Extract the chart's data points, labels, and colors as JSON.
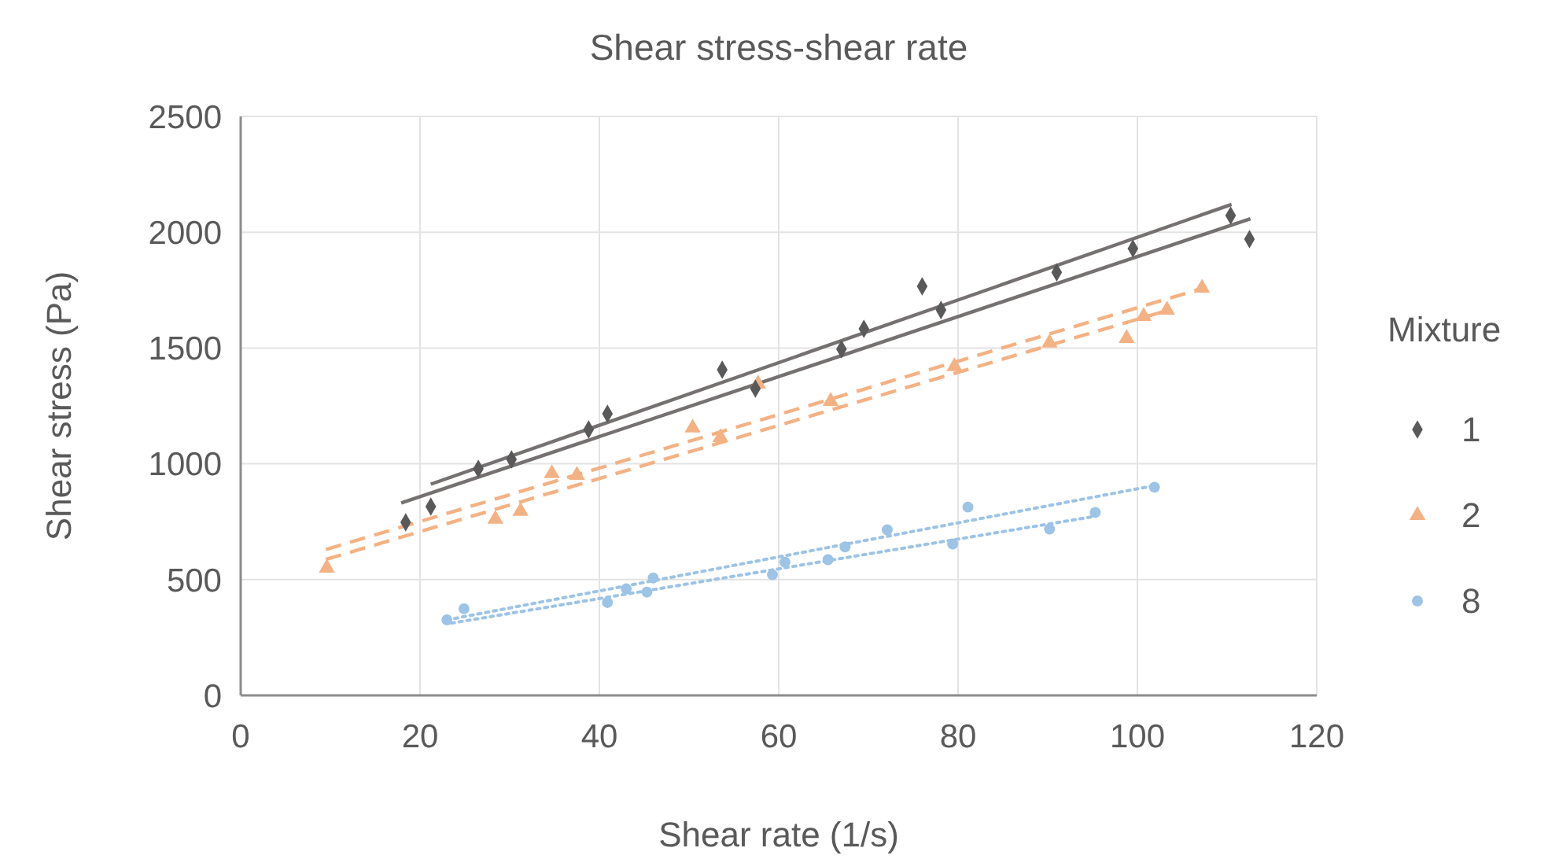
{
  "chart_data": {
    "type": "scatter",
    "title": "Shear stress-shear rate",
    "xlabel": "Shear rate (1/s)",
    "ylabel": "Shear stress (Pa)",
    "legend_title": "Mixture",
    "legend": "right",
    "grid": true,
    "xlim": [
      0,
      120
    ],
    "ylim": [
      0,
      2500
    ],
    "xticks": [
      0,
      20,
      40,
      60,
      80,
      100,
      120
    ],
    "yticks": [
      0,
      500,
      1000,
      1500,
      2000,
      2500
    ],
    "series": [
      {
        "name": "1",
        "color": "#595959",
        "marker": "diamond",
        "x": [
          18.4,
          21.2,
          26.5,
          30.2,
          38.8,
          40.9,
          53.7,
          57.4,
          67,
          69.5,
          76,
          78.1,
          91,
          99.5,
          110.4,
          112.5
        ],
        "values": [
          747,
          815,
          978,
          1019,
          1148,
          1216,
          1406,
          1325,
          1495,
          1583,
          1766,
          1664,
          1827,
          1929,
          2072,
          1970
        ]
      },
      {
        "name": "2",
        "color": "#f4b183",
        "marker": "triangle",
        "x": [
          9.6,
          28.4,
          31.2,
          34.7,
          37.5,
          50.4,
          53.5,
          57.7,
          65.8,
          79.6,
          90.2,
          98.8,
          100.7,
          103.3,
          107.2
        ],
        "values": [
          550,
          761,
          795,
          958,
          951,
          1155,
          1114,
          1345,
          1270,
          1420,
          1522,
          1542,
          1637,
          1664,
          1759
        ]
      },
      {
        "name": "8",
        "color": "#9dc3e6",
        "marker": "circle",
        "x": [
          23,
          24.9,
          40.9,
          43,
          45.3,
          46,
          59.3,
          60.7,
          65.5,
          67.4,
          72.1,
          79.4,
          81.1,
          90.2,
          95.3,
          101.9
        ],
        "values": [
          326,
          374,
          401,
          460,
          446,
          507,
          521,
          575,
          586,
          641,
          715,
          654,
          813,
          718,
          790,
          899
        ]
      },
      {
        "type": "line",
        "color": "#767171",
        "line_style": "solid",
        "marker": "none",
        "x": [
          21.2,
          110.5
        ],
        "values": [
          912,
          2120
        ]
      },
      {
        "type": "line",
        "color": "#767171",
        "line_style": "solid",
        "marker": "none",
        "x": [
          17.9,
          112.6
        ],
        "values": [
          831,
          2058
        ]
      },
      {
        "type": "line",
        "color": "#f4b183",
        "line_style": "dashed",
        "marker": "none",
        "x": [
          9.5,
          107.2
        ],
        "values": [
          630,
          1757
        ]
      },
      {
        "type": "line",
        "color": "#f4b183",
        "line_style": "dashed",
        "marker": "none",
        "x": [
          9.5,
          103.3
        ],
        "values": [
          587,
          1662
        ]
      },
      {
        "type": "line",
        "color": "#9dc3e6",
        "line_style": "dotted",
        "marker": "none",
        "x": [
          23,
          101.9
        ],
        "values": [
          326,
          906
        ]
      },
      {
        "type": "line",
        "color": "#9dc3e6",
        "line_style": "dotted",
        "marker": "none",
        "x": [
          23.5,
          95.1
        ],
        "values": [
          312,
          772
        ]
      }
    ]
  }
}
